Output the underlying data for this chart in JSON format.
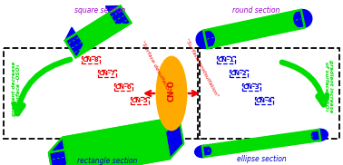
{
  "bg_color": "#ffffff",
  "cn_labels_left": [
    "CN-8",
    "CN-7",
    "CN-6",
    "CN-5"
  ],
  "cn_labels_right": [
    "CN-1",
    "CN-2",
    "CN-3",
    "CN-4"
  ],
  "square_section": "square section",
  "round_section": "round section",
  "rectangle_section": "rectangle section",
  "ellipse_section": "ellipse section",
  "surface_desulfation": "\"Surface desulfation\"",
  "surface_postsulfation": "\"Surface postsulfation\"",
  "gradient_decrease": "gradient decrease\nof surface -OSO₃",
  "gradient_increase": "gradient increase\nof surface -OSO₃",
  "center_label": "CN-O",
  "green": "#00dd00",
  "blue": "#0000ee",
  "red": "#ee0000",
  "orange": "#ffaa00",
  "purple": "#9900cc",
  "label_blue": "#0000cc"
}
